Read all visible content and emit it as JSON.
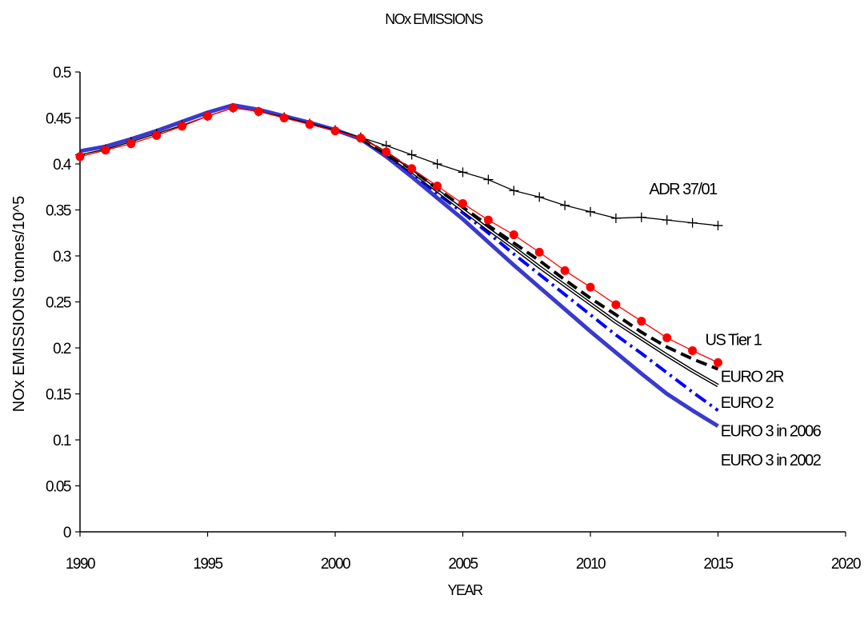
{
  "chart_data": {
    "type": "line",
    "title": "NOx EMISSIONS",
    "xlabel": "YEAR",
    "ylabel": "NOx EMISSIONS tonnes/10^5",
    "xlim": [
      1990,
      2020
    ],
    "ylim": [
      0,
      0.5
    ],
    "x_ticks": [
      "1990",
      "1995",
      "2000",
      "2005",
      "2010",
      "2015",
      "2020"
    ],
    "y_ticks": [
      "0",
      "0.05",
      "0.1",
      "0.15",
      "0.2",
      "0.25",
      "0.3",
      "0.35",
      "0.4",
      "0.45",
      "0.5"
    ],
    "grid": false,
    "legend": "none",
    "series": [
      {
        "name": "ADR 37/01",
        "color": "#000000",
        "marker": "plus",
        "x": [
          1990,
          1991,
          1992,
          1993,
          1994,
          1995,
          1996,
          1997,
          1998,
          1999,
          2000,
          2001,
          2002,
          2003,
          2004,
          2005,
          2006,
          2007,
          2008,
          2009,
          2010,
          2011,
          2012,
          2013,
          2014,
          2015
        ],
        "y": [
          0.41,
          0.416,
          0.424,
          0.433,
          0.442,
          0.452,
          0.461,
          0.457,
          0.451,
          0.444,
          0.437,
          0.429,
          0.42,
          0.41,
          0.4,
          0.391,
          0.383,
          0.371,
          0.364,
          0.355,
          0.348,
          0.341,
          0.342,
          0.339,
          0.336,
          0.333
        ]
      },
      {
        "name": "US Tier 1",
        "color": "#ff0000",
        "marker": "circle",
        "x": [
          1990,
          1991,
          1992,
          1993,
          1994,
          1995,
          1996,
          1997,
          1998,
          1999,
          2000,
          2001,
          2002,
          2003,
          2004,
          2005,
          2006,
          2007,
          2008,
          2009,
          2010,
          2011,
          2012,
          2013,
          2014,
          2015
        ],
        "y": [
          0.408,
          0.415,
          0.422,
          0.431,
          0.441,
          0.452,
          0.461,
          0.457,
          0.45,
          0.443,
          0.436,
          0.428,
          0.413,
          0.395,
          0.376,
          0.357,
          0.339,
          0.323,
          0.304,
          0.284,
          0.266,
          0.247,
          0.229,
          0.211,
          0.197,
          0.184
        ]
      },
      {
        "name": "EURO 2R",
        "color": "#000000",
        "dash": "14,7",
        "width": 4,
        "x": [
          2001,
          2002,
          2003,
          2004,
          2005,
          2006,
          2007,
          2008,
          2009,
          2010,
          2011,
          2012,
          2013,
          2014,
          2015
        ],
        "y": [
          0.428,
          0.412,
          0.394,
          0.373,
          0.353,
          0.333,
          0.314,
          0.295,
          0.274,
          0.254,
          0.236,
          0.217,
          0.201,
          0.188,
          0.177
        ]
      },
      {
        "name": "EURO 2",
        "color": "#000000",
        "double": true,
        "x": [
          2001,
          2002,
          2003,
          2004,
          2005,
          2006,
          2007,
          2008,
          2009,
          2010,
          2011,
          2012,
          2013,
          2014,
          2015
        ],
        "y": [
          0.428,
          0.411,
          0.392,
          0.371,
          0.35,
          0.329,
          0.309,
          0.288,
          0.268,
          0.248,
          0.228,
          0.21,
          0.192,
          0.175,
          0.159
        ]
      },
      {
        "name": "EURO 3 in 2006",
        "color": "#0000ff",
        "dash": "16,6,3,6",
        "width": 4,
        "x": [
          2001,
          2002,
          2003,
          2004,
          2005,
          2006,
          2007,
          2008,
          2009,
          2010,
          2011,
          2012,
          2013,
          2014,
          2015
        ],
        "y": [
          0.428,
          0.41,
          0.39,
          0.368,
          0.347,
          0.325,
          0.302,
          0.28,
          0.258,
          0.236,
          0.214,
          0.194,
          0.173,
          0.152,
          0.132
        ]
      },
      {
        "name": "EURO 3 in 2002",
        "color": "#3a3acc",
        "width": 5,
        "x": [
          1990,
          1991,
          1992,
          1993,
          1994,
          1995,
          1996,
          1997,
          1998,
          1999,
          2000,
          2001,
          2002,
          2003,
          2004,
          2005,
          2006,
          2007,
          2008,
          2009,
          2010,
          2011,
          2012,
          2013,
          2014,
          2015
        ],
        "y": [
          0.414,
          0.419,
          0.427,
          0.436,
          0.446,
          0.456,
          0.464,
          0.459,
          0.452,
          0.445,
          0.437,
          0.427,
          0.408,
          0.386,
          0.363,
          0.34,
          0.315,
          0.29,
          0.266,
          0.242,
          0.218,
          0.195,
          0.172,
          0.15,
          0.132,
          0.115
        ]
      }
    ],
    "annotations": [
      {
        "text": "ADR 37/01",
        "x": 2012.3,
        "y": 0.367
      },
      {
        "text": "US Tier 1",
        "x": 2014.5,
        "y": 0.203
      },
      {
        "text": "EURO 2R",
        "x": 2015.1,
        "y": 0.163
      },
      {
        "text": "EURO 2",
        "x": 2015.1,
        "y": 0.135
      },
      {
        "text": "EURO 3 in 2006",
        "x": 2015.1,
        "y": 0.104
      },
      {
        "text": "EURO 3 in 2002",
        "x": 2015.1,
        "y": 0.072
      }
    ]
  }
}
